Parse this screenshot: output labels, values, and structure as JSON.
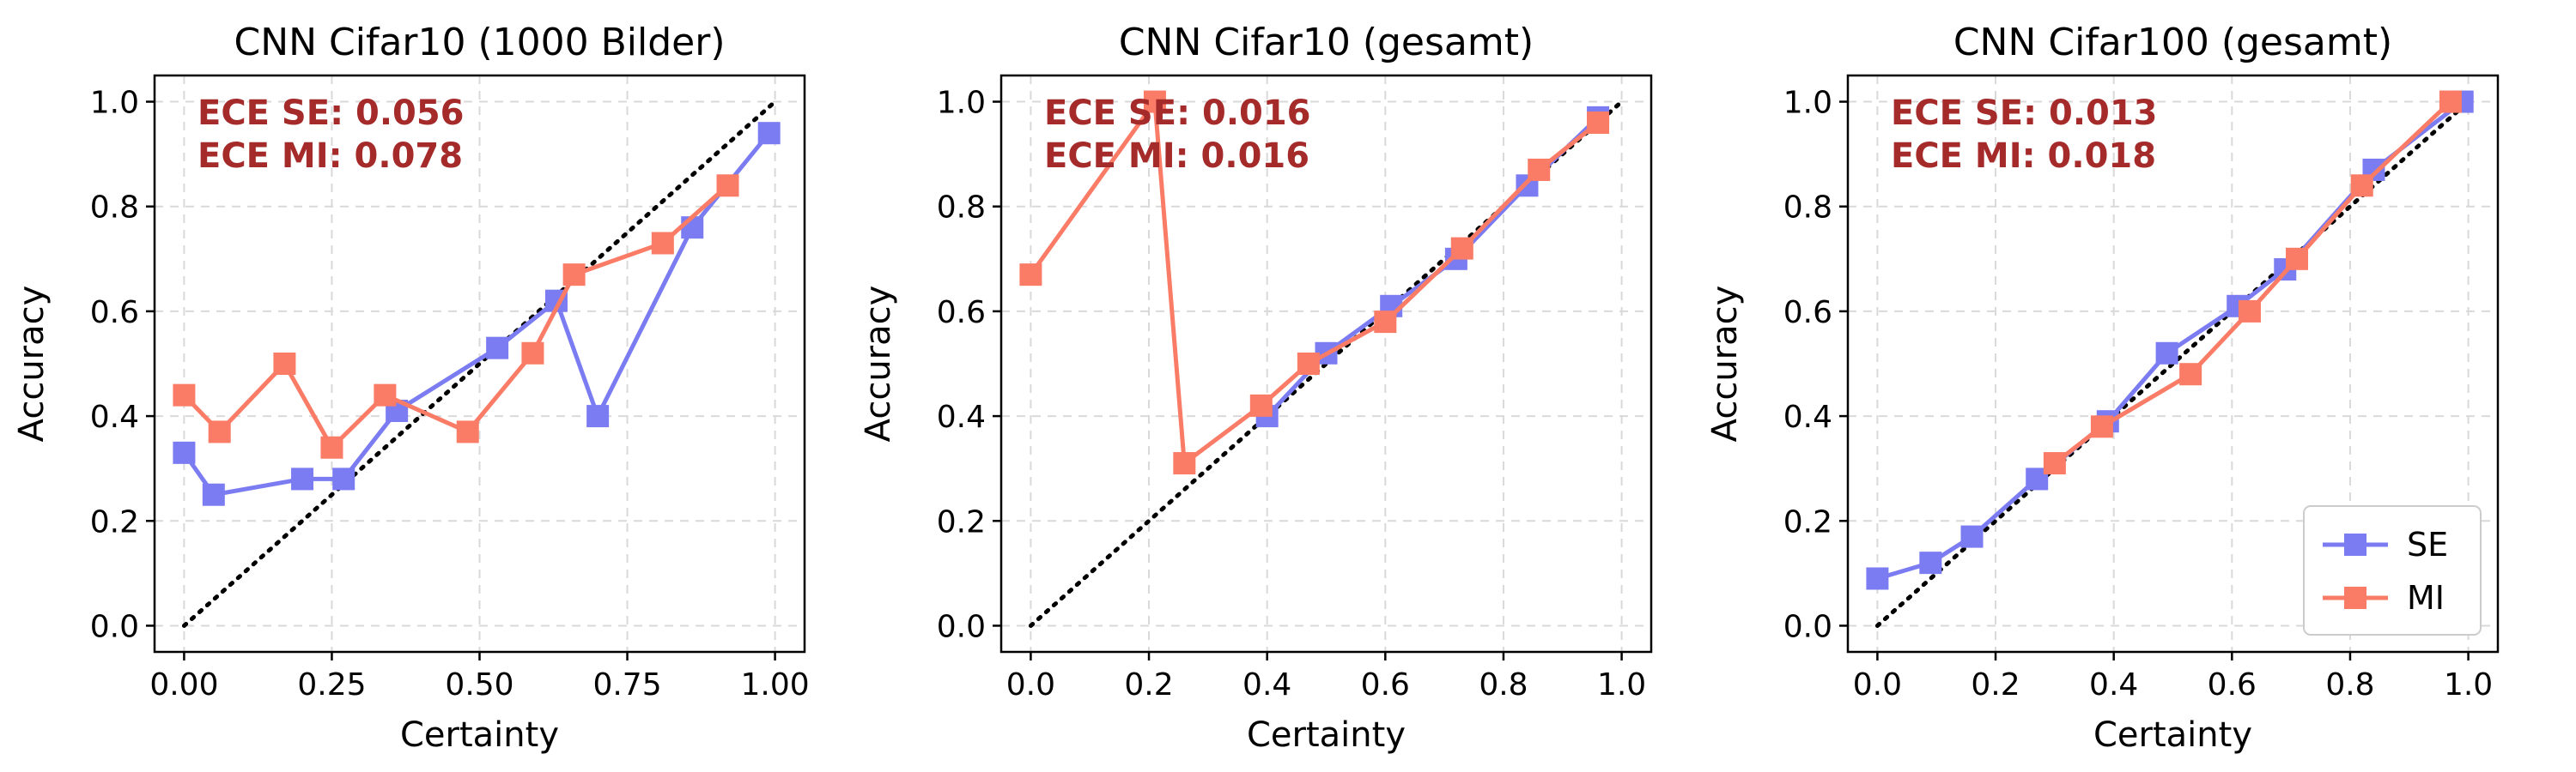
{
  "colors": {
    "se": "#7b7cf2",
    "mi": "#fa7b66",
    "annotation": "#a52a2a",
    "grid": "#d9d9d9",
    "diagonal": "#000000"
  },
  "legend": {
    "items": [
      "SE",
      "MI"
    ],
    "placement": "lower-right",
    "panel": 2
  },
  "chart_data": [
    {
      "type": "line",
      "title": "CNN Cifar10 (1000 Bilder)",
      "xlabel": "Certainty",
      "ylabel": "Accuracy",
      "xlim": [
        -0.05,
        1.05
      ],
      "ylim": [
        -0.05,
        1.05
      ],
      "xticks": [
        0,
        0.25,
        0.5,
        0.75,
        1.0
      ],
      "xtick_labels": [
        "0.00",
        "0.25",
        "0.50",
        "0.75",
        "1.00"
      ],
      "yticks": [
        0,
        0.2,
        0.4,
        0.6,
        0.8,
        1.0
      ],
      "ytick_labels": [
        "0.0",
        "0.2",
        "0.4",
        "0.6",
        "0.8",
        "1.0"
      ],
      "grid": true,
      "diagonal": true,
      "annotations": [
        "ECE SE: 0.056",
        "ECE MI: 0.078"
      ],
      "series": [
        {
          "name": "SE",
          "color": "#7b7cf2",
          "x": [
            0.0,
            0.05,
            0.2,
            0.27,
            0.36,
            0.53,
            0.63,
            0.7,
            0.86,
            0.99
          ],
          "y": [
            0.33,
            0.25,
            0.28,
            0.28,
            0.41,
            0.53,
            0.62,
            0.4,
            0.76,
            0.94
          ]
        },
        {
          "name": "MI",
          "color": "#fa7b66",
          "x": [
            0.0,
            0.06,
            0.17,
            0.25,
            0.34,
            0.48,
            0.59,
            0.66,
            0.81,
            0.92
          ],
          "y": [
            0.44,
            0.37,
            0.5,
            0.34,
            0.44,
            0.37,
            0.52,
            0.67,
            0.73,
            0.84
          ]
        }
      ]
    },
    {
      "type": "line",
      "title": "CNN Cifar10 (gesamt)",
      "xlabel": "Certainty",
      "ylabel": "Accuracy",
      "xlim": [
        -0.05,
        1.05
      ],
      "ylim": [
        -0.05,
        1.05
      ],
      "xticks": [
        0,
        0.2,
        0.4,
        0.6,
        0.8,
        1.0
      ],
      "xtick_labels": [
        "0.0",
        "0.2",
        "0.4",
        "0.6",
        "0.8",
        "1.0"
      ],
      "yticks": [
        0,
        0.2,
        0.4,
        0.6,
        0.8,
        1.0
      ],
      "ytick_labels": [
        "0.0",
        "0.2",
        "0.4",
        "0.6",
        "0.8",
        "1.0"
      ],
      "grid": true,
      "diagonal": true,
      "annotations": [
        "ECE SE: 0.016",
        "ECE MI: 0.016"
      ],
      "series": [
        {
          "name": "SE",
          "color": "#7b7cf2",
          "x": [
            0.4,
            0.5,
            0.61,
            0.72,
            0.84,
            0.96
          ],
          "y": [
            0.4,
            0.52,
            0.61,
            0.7,
            0.84,
            0.97
          ]
        },
        {
          "name": "MI",
          "color": "#fa7b66",
          "x": [
            0.0,
            0.21,
            0.26,
            0.39,
            0.47,
            0.6,
            0.73,
            0.86,
            0.96
          ],
          "y": [
            0.67,
            1.0,
            0.31,
            0.42,
            0.5,
            0.58,
            0.72,
            0.87,
            0.96
          ]
        }
      ]
    },
    {
      "type": "line",
      "title": "CNN Cifar100 (gesamt)",
      "xlabel": "Certainty",
      "ylabel": "Accuracy",
      "xlim": [
        -0.05,
        1.05
      ],
      "ylim": [
        -0.05,
        1.05
      ],
      "xticks": [
        0,
        0.2,
        0.4,
        0.6,
        0.8,
        1.0
      ],
      "xtick_labels": [
        "0.0",
        "0.2",
        "0.4",
        "0.6",
        "0.8",
        "1.0"
      ],
      "yticks": [
        0,
        0.2,
        0.4,
        0.6,
        0.8,
        1.0
      ],
      "ytick_labels": [
        "0.0",
        "0.2",
        "0.4",
        "0.6",
        "0.8",
        "1.0"
      ],
      "grid": true,
      "diagonal": true,
      "annotations": [
        "ECE SE: 0.013",
        "ECE MI: 0.018"
      ],
      "series": [
        {
          "name": "SE",
          "color": "#7b7cf2",
          "x": [
            0.0,
            0.09,
            0.16,
            0.27,
            0.39,
            0.49,
            0.61,
            0.69,
            0.84,
            0.99
          ],
          "y": [
            0.09,
            0.12,
            0.17,
            0.28,
            0.39,
            0.52,
            0.61,
            0.68,
            0.87,
            1.0
          ]
        },
        {
          "name": "MI",
          "color": "#fa7b66",
          "x": [
            0.3,
            0.38,
            0.53,
            0.63,
            0.71,
            0.82,
            0.97
          ],
          "y": [
            0.31,
            0.38,
            0.48,
            0.6,
            0.7,
            0.84,
            1.0
          ]
        }
      ]
    }
  ]
}
